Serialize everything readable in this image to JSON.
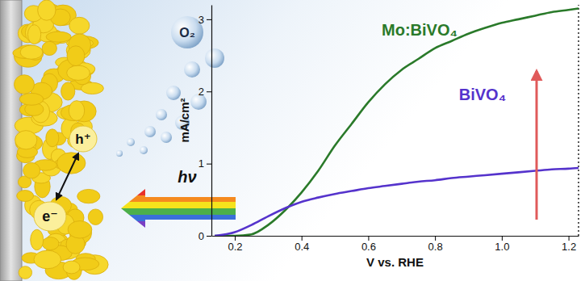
{
  "chart_data": {
    "type": "line",
    "xlabel": "V vs. RHE",
    "ylabel": "mA/cm²",
    "annotations": [
      "O₂",
      "h⁺",
      "e⁻",
      "hν"
    ],
    "x": [
      0.14,
      0.2,
      0.25,
      0.3,
      0.35,
      0.4,
      0.45,
      0.5,
      0.55,
      0.6,
      0.65,
      0.7,
      0.75,
      0.8,
      0.85,
      0.9,
      0.95,
      1.0,
      1.05,
      1.1,
      1.15,
      1.2,
      1.23
    ],
    "xlim": [
      0.13,
      1.23
    ],
    "xticks": [
      0.2,
      0.4,
      0.6,
      0.8,
      {
        "value": 1,
        "label": "1.0"
      },
      1.2
    ],
    "ylim": [
      0,
      3.2
    ],
    "yticks": [
      0,
      1,
      2,
      3
    ],
    "series": [
      {
        "name": "Mo:BiVO₄",
        "color": "#2a7a2a",
        "values": [
          0,
          0,
          0.02,
          0.15,
          0.35,
          0.6,
          0.9,
          1.25,
          1.55,
          1.85,
          2.1,
          2.3,
          2.45,
          2.6,
          2.7,
          2.8,
          2.88,
          2.95,
          3.0,
          3.05,
          3.1,
          3.13,
          3.15
        ]
      },
      {
        "name": "BiVO₄",
        "color": "#5533cc",
        "values": [
          0,
          0.05,
          0.15,
          0.27,
          0.38,
          0.47,
          0.53,
          0.58,
          0.62,
          0.66,
          0.69,
          0.72,
          0.75,
          0.77,
          0.8,
          0.82,
          0.84,
          0.86,
          0.88,
          0.9,
          0.92,
          0.93,
          0.94
        ]
      }
    ]
  }
}
